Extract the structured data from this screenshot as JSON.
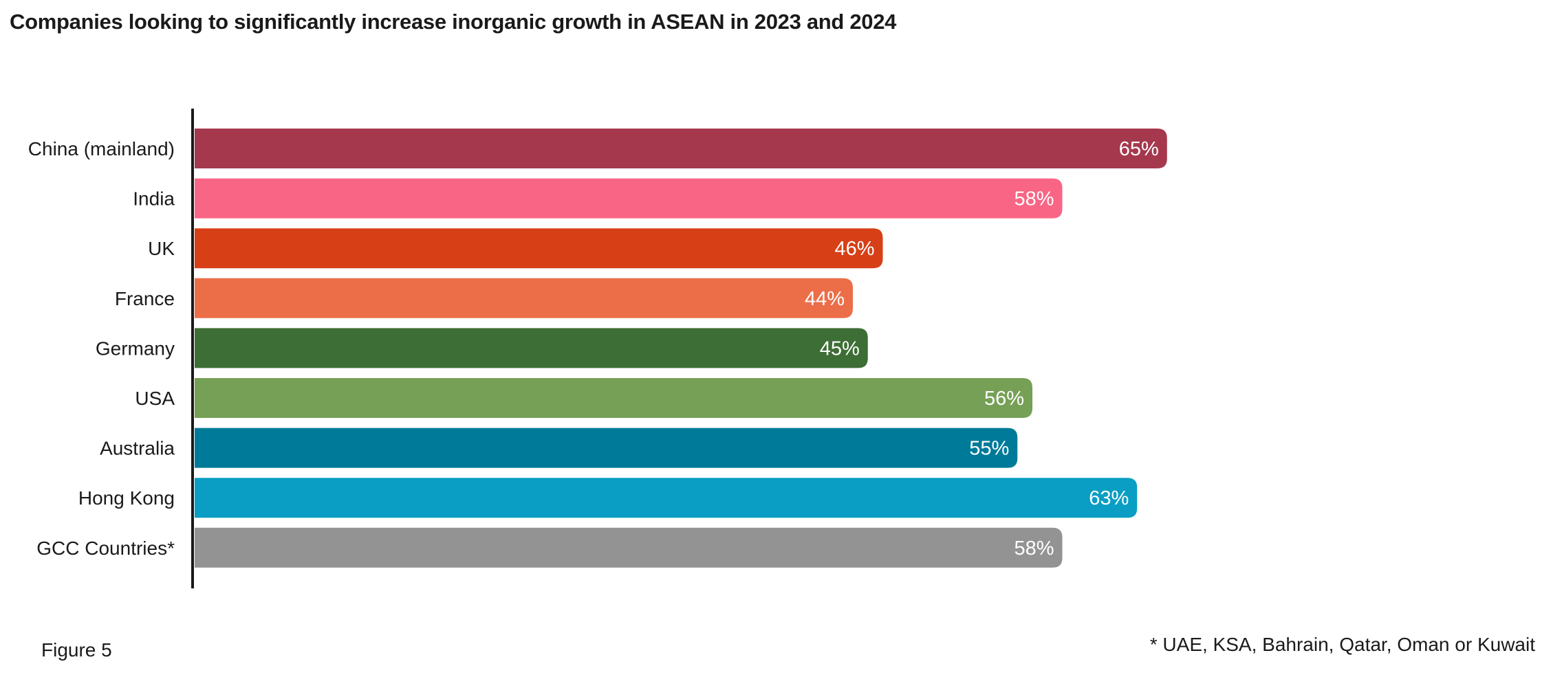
{
  "chart_data": {
    "type": "bar",
    "orientation": "horizontal",
    "title": "Companies looking to significantly increase inorganic growth in ASEAN in 2023 and 2024",
    "categories": [
      "China (mainland)",
      "India",
      "UK",
      "France",
      "Germany",
      "USA",
      "Australia",
      "Hong Kong",
      "GCC Countries*"
    ],
    "values": [
      65,
      58,
      46,
      44,
      45,
      56,
      55,
      63,
      58
    ],
    "value_labels": [
      "65%",
      "58%",
      "46%",
      "44%",
      "45%",
      "56%",
      "55%",
      "63%",
      "58%"
    ],
    "colors": [
      "#A5384D",
      "#F96585",
      "#D73F16",
      "#EC6E48",
      "#3D6E35",
      "#76A056",
      "#007A99",
      "#0A9EC4",
      "#939393"
    ],
    "xlim": [
      0,
      100
    ],
    "grid": false,
    "legend": "none"
  },
  "figure_label": "Figure 5",
  "footnote": "* UAE, KSA, Bahrain, Qatar, Oman or Kuwait"
}
